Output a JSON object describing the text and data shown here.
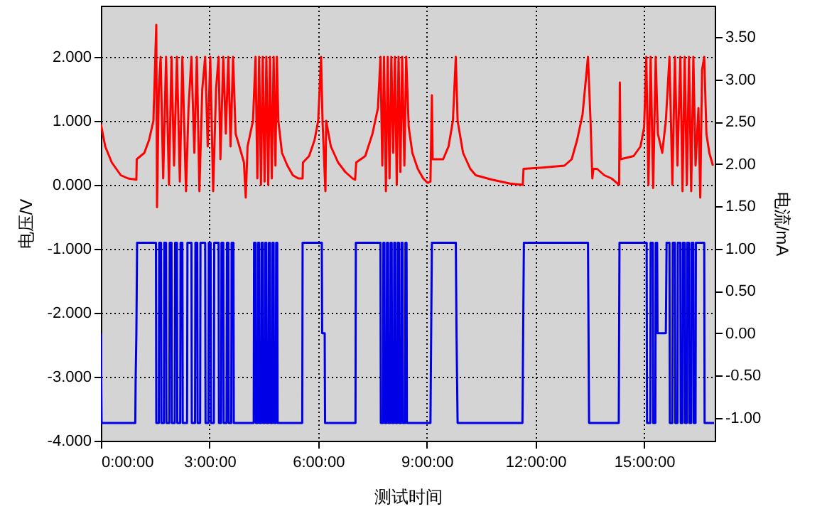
{
  "chart_data": {
    "type": "line",
    "xlabel": "测试时间",
    "ylabel": "电压/V",
    "y2label": "电流/mA",
    "grid": true,
    "xlim": [
      0,
      16.95
    ],
    "xticks": [
      {
        "value": 0,
        "label": "0:00:00"
      },
      {
        "value": 3,
        "label": "3:00:00"
      },
      {
        "value": 6,
        "label": "6:00:00"
      },
      {
        "value": 9,
        "label": "9:00:00"
      },
      {
        "value": 12,
        "label": "12:00:00"
      },
      {
        "value": 15,
        "label": "15:00:00"
      }
    ],
    "ylim": [
      -4,
      2.8
    ],
    "yticks": [
      {
        "value": -4,
        "label": "-4.000"
      },
      {
        "value": -3,
        "label": "-3.000"
      },
      {
        "value": -2,
        "label": "-2.000"
      },
      {
        "value": -1,
        "label": "-1.000"
      },
      {
        "value": 0,
        "label": "0.000"
      },
      {
        "value": 1,
        "label": "1.000"
      },
      {
        "value": 2,
        "label": "2.000"
      }
    ],
    "y2lim": [
      -1.27,
      3.87
    ],
    "y2ticks": [
      {
        "value": -1,
        "label": "-1.00"
      },
      {
        "value": -0.5,
        "label": "-0.50"
      },
      {
        "value": 0,
        "label": "0.00"
      },
      {
        "value": 0.5,
        "label": "0.50"
      },
      {
        "value": 1,
        "label": "1.00"
      },
      {
        "value": 1.5,
        "label": "1.50"
      },
      {
        "value": 2,
        "label": "2.00"
      },
      {
        "value": 2.5,
        "label": "2.50"
      },
      {
        "value": 3,
        "label": "3.00"
      },
      {
        "value": 3.5,
        "label": "3.50"
      }
    ],
    "series": [
      {
        "color": "#ff0000",
        "x": [
          0,
          0.12,
          0.3,
          0.55,
          0.75,
          0.98,
          0.99,
          1.2,
          1.33,
          1.45,
          1.53,
          1.55,
          1.6,
          1.65,
          1.72,
          1.8,
          1.88,
          1.95,
          2.02,
          2.1,
          2.18,
          2.25,
          2.35,
          2.42,
          2.5,
          2.58,
          2.65,
          2.72,
          2.8,
          2.88,
          2.95,
          3.02,
          3.1,
          3.18,
          3.25,
          3.3,
          3.38,
          3.45,
          3.52,
          3.58,
          3.65,
          3.72,
          3.85,
          3.95,
          4.0,
          4.05,
          4.2,
          4.27,
          4.32,
          4.37,
          4.42,
          4.47,
          4.52,
          4.57,
          4.62,
          4.67,
          4.72,
          4.77,
          4.82,
          4.86,
          4.9,
          5.0,
          5.15,
          5.3,
          5.45,
          5.57,
          5.58,
          5.75,
          5.9,
          6.0,
          6.08,
          6.12,
          6.2,
          6.22,
          6.35,
          6.55,
          6.75,
          6.95,
          7.02,
          7.05,
          7.3,
          7.5,
          7.65,
          7.72,
          7.77,
          7.82,
          7.87,
          7.92,
          7.97,
          8.02,
          8.07,
          8.12,
          8.17,
          8.22,
          8.27,
          8.32,
          8.38,
          8.43,
          8.5,
          8.6,
          8.75,
          8.9,
          9.02,
          9.1,
          9.14,
          9.16,
          9.45,
          9.6,
          9.72,
          9.8,
          9.85,
          10.0,
          10.2,
          10.35,
          10.8,
          11.3,
          11.65,
          11.67,
          12.2,
          12.8,
          13.0,
          13.15,
          13.3,
          13.45,
          13.52,
          13.57,
          13.6,
          13.7,
          13.9,
          14.1,
          14.31,
          14.33,
          14.35,
          14.71,
          14.9,
          15.0,
          15.06,
          15.12,
          15.18,
          15.25,
          15.32,
          15.38,
          15.5,
          15.6,
          15.7,
          15.78,
          15.85,
          15.92,
          16.0,
          16.06,
          16.12,
          16.18,
          16.24,
          16.3,
          16.36,
          16.42,
          16.5,
          16.55,
          16.6,
          16.66,
          16.72,
          16.8,
          16.9
        ],
        "values": [
          0.95,
          0.6,
          0.35,
          0.15,
          0.1,
          0.08,
          0.4,
          0.5,
          0.7,
          1.0,
          2.5,
          -0.35,
          1.5,
          2.0,
          0.1,
          2.0,
          0.0,
          2.0,
          0.3,
          2.0,
          0.05,
          2.0,
          -0.1,
          1.2,
          2.0,
          0.5,
          2.0,
          -0.1,
          1.5,
          2.0,
          0.6,
          2.0,
          -0.1,
          1.5,
          2.0,
          0.4,
          2.0,
          0.8,
          2.0,
          0.6,
          2.0,
          0.8,
          0.55,
          0.35,
          -0.2,
          0.6,
          1.0,
          2.0,
          0.1,
          2.0,
          0.0,
          2.0,
          0.05,
          2.0,
          0.0,
          2.0,
          0.1,
          2.0,
          0.3,
          2.0,
          1.0,
          0.5,
          0.3,
          0.15,
          0.1,
          0.1,
          0.35,
          0.45,
          0.7,
          1.0,
          2.0,
          1.0,
          -0.1,
          1.0,
          0.6,
          0.35,
          0.2,
          0.1,
          0.08,
          0.35,
          0.45,
          0.8,
          1.2,
          2.0,
          0.3,
          2.0,
          -0.1,
          2.0,
          0.1,
          2.0,
          0.5,
          2.0,
          0.0,
          2.0,
          0.2,
          2.0,
          0.3,
          2.0,
          0.9,
          0.5,
          0.25,
          0.1,
          0.03,
          0.05,
          1.4,
          0.4,
          0.4,
          0.6,
          1.0,
          2.0,
          1.0,
          0.5,
          0.25,
          0.15,
          0.08,
          0.02,
          0.0,
          0.25,
          0.27,
          0.3,
          0.4,
          0.7,
          1.1,
          2.0,
          1.0,
          0.1,
          0.25,
          0.25,
          0.15,
          0.1,
          0.0,
          1.6,
          0.4,
          0.45,
          0.6,
          0.9,
          2.0,
          0.0,
          2.0,
          -0.05,
          2.0,
          0.8,
          0.5,
          1.0,
          2.0,
          0.0,
          2.0,
          0.3,
          2.0,
          -0.1,
          2.0,
          0.0,
          2.0,
          -0.1,
          2.0,
          0.3,
          1.2,
          -0.2,
          1.8,
          2.0,
          0.8,
          0.5,
          0.3
        ]
      },
      {
        "color": "#0000e6",
        "axis": "y2",
        "x": [
          0,
          0.02,
          0.95,
          0.96,
          0.98,
          1.0,
          1.52,
          1.53,
          1.6,
          1.61,
          1.66,
          1.67,
          1.74,
          1.75,
          1.8,
          1.81,
          1.89,
          1.9,
          1.95,
          1.96,
          2.04,
          2.05,
          2.1,
          2.11,
          2.19,
          2.2,
          2.25,
          2.26,
          2.38,
          2.39,
          2.5,
          2.51,
          2.6,
          2.61,
          2.66,
          2.67,
          2.74,
          2.75,
          2.88,
          2.89,
          2.97,
          2.98,
          3.03,
          3.04,
          3.12,
          3.13,
          3.25,
          3.26,
          3.32,
          3.33,
          3.38,
          3.39,
          3.47,
          3.48,
          3.52,
          3.53,
          3.6,
          3.61,
          3.66,
          3.67,
          4.22,
          4.23,
          4.27,
          4.28,
          4.33,
          4.34,
          4.37,
          4.38,
          4.43,
          4.44,
          4.47,
          4.48,
          4.53,
          4.54,
          4.57,
          4.58,
          4.63,
          4.64,
          4.67,
          4.68,
          4.73,
          4.74,
          4.77,
          4.78,
          4.83,
          4.84,
          4.87,
          4.88,
          5.56,
          5.57,
          6.1,
          6.11,
          6.18,
          6.19,
          7.03,
          7.04,
          7.72,
          7.73,
          7.79,
          7.8,
          7.83,
          7.84,
          7.89,
          7.9,
          7.93,
          7.94,
          7.99,
          8.0,
          8.03,
          8.04,
          8.09,
          8.1,
          8.13,
          8.14,
          8.19,
          8.2,
          8.23,
          8.24,
          8.29,
          8.3,
          8.33,
          8.34,
          8.4,
          8.41,
          8.44,
          8.45,
          9.1,
          9.12,
          9.14,
          9.8,
          9.82,
          9.85,
          11.64,
          11.66,
          11.68,
          13.45,
          13.48,
          14.3,
          14.32,
          15.07,
          15.08,
          15.17,
          15.18,
          15.24,
          15.25,
          15.31,
          15.32,
          15.36,
          15.37,
          15.6,
          15.62,
          15.7,
          15.71,
          15.78,
          15.79,
          15.85,
          15.86,
          15.92,
          15.93,
          16.0,
          16.01,
          16.06,
          16.07,
          16.12,
          16.13,
          16.18,
          16.19,
          16.24,
          16.25,
          16.3,
          16.31,
          16.36,
          16.37,
          16.42,
          16.43,
          16.66,
          16.67,
          16.93
        ],
        "values": [
          0,
          -1.06,
          -1.06,
          -0.54,
          0,
          1.07,
          1.07,
          -1.06,
          -1.06,
          1.07,
          1.07,
          -1.06,
          -1.06,
          1.07,
          1.07,
          -1.06,
          -1.06,
          1.07,
          1.07,
          -1.06,
          -1.06,
          1.07,
          1.07,
          -1.06,
          -1.06,
          1.07,
          1.07,
          -1.06,
          -1.06,
          1.07,
          1.07,
          -1.06,
          -1.06,
          1.07,
          1.07,
          -1.06,
          -1.06,
          1.07,
          1.07,
          -1.06,
          -1.06,
          1.07,
          1.07,
          -1.06,
          -1.06,
          1.07,
          1.07,
          -1.06,
          -1.06,
          1.07,
          1.07,
          -1.06,
          -1.06,
          1.07,
          1.07,
          -1.06,
          -1.06,
          1.07,
          1.07,
          -1.06,
          -1.06,
          1.07,
          1.07,
          -1.06,
          -1.06,
          1.07,
          1.07,
          -1.06,
          -1.06,
          1.07,
          1.07,
          -1.06,
          -1.06,
          1.07,
          1.07,
          -1.06,
          -1.06,
          1.07,
          1.07,
          -1.06,
          -1.06,
          1.07,
          1.07,
          -1.06,
          -1.06,
          1.07,
          1.07,
          -1.06,
          -1.06,
          1.07,
          1.07,
          0,
          0,
          -1.06,
          -1.06,
          1.07,
          1.07,
          -1.06,
          -1.06,
          1.07,
          1.07,
          -1.06,
          -1.06,
          1.07,
          1.07,
          -1.06,
          -1.06,
          1.07,
          1.07,
          -1.06,
          -1.06,
          1.07,
          1.07,
          -1.06,
          -1.06,
          1.07,
          1.07,
          -1.06,
          -1.06,
          1.07,
          1.07,
          -1.06,
          -1.06,
          1.07,
          1.07,
          -1.06,
          -1.06,
          0,
          1.07,
          1.07,
          0,
          -1.06,
          -1.06,
          0,
          1.07,
          1.07,
          -1.06,
          -1.06,
          1.07,
          1.07,
          -1.06,
          -1.06,
          1.07,
          1.07,
          -1.06,
          -1.06,
          1.07,
          1.07,
          0,
          0,
          1.07,
          1.07,
          -1.06,
          -1.06,
          1.07,
          1.07,
          -1.06,
          -1.06,
          1.07,
          1.07,
          -1.06,
          -1.06,
          1.07,
          1.07,
          -1.06,
          -1.06,
          1.07,
          1.07,
          -1.06,
          -1.06,
          1.07,
          1.07,
          -1.06,
          -1.06,
          1.07,
          1.07,
          -1.06,
          -1.06
        ]
      }
    ]
  }
}
